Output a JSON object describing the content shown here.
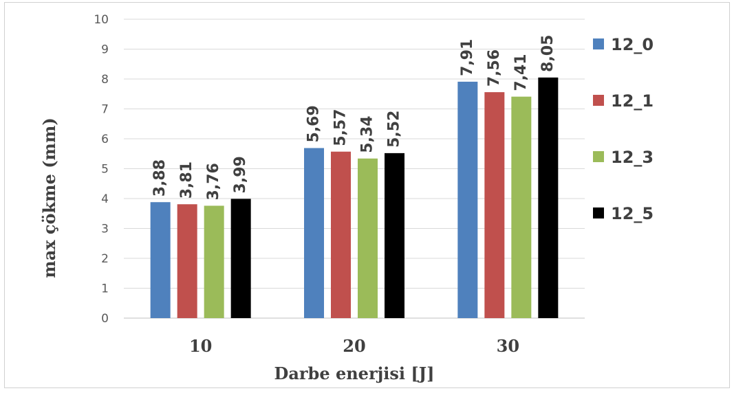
{
  "chart_data": {
    "type": "bar",
    "categories": [
      "10",
      "20",
      "30"
    ],
    "series": [
      {
        "name": "12_0",
        "values": [
          3.88,
          5.69,
          7.91
        ],
        "labels": [
          "3,88",
          "5,69",
          "7,91"
        ],
        "color": "#4f81bd"
      },
      {
        "name": "12_1",
        "values": [
          3.81,
          5.57,
          7.56
        ],
        "labels": [
          "3,81",
          "5,57",
          "7,56"
        ],
        "color": "#c0504d"
      },
      {
        "name": "12_3",
        "values": [
          3.76,
          5.34,
          7.41
        ],
        "labels": [
          "3,76",
          "5,34",
          "7,41"
        ],
        "color": "#9bbb59"
      },
      {
        "name": "12_5",
        "values": [
          3.99,
          5.52,
          8.05
        ],
        "labels": [
          "3,99",
          "5,52",
          "8,05"
        ],
        "color": "#000000"
      }
    ],
    "title": "",
    "xlabel": "Darbe enerjisi [J]",
    "ylabel": "max çökme (mm)",
    "ylim": [
      0,
      10
    ],
    "yticks": [
      "0",
      "1",
      "2",
      "3",
      "4",
      "5",
      "6",
      "7",
      "8",
      "9",
      "10"
    ],
    "grid": true,
    "legend": "right"
  }
}
